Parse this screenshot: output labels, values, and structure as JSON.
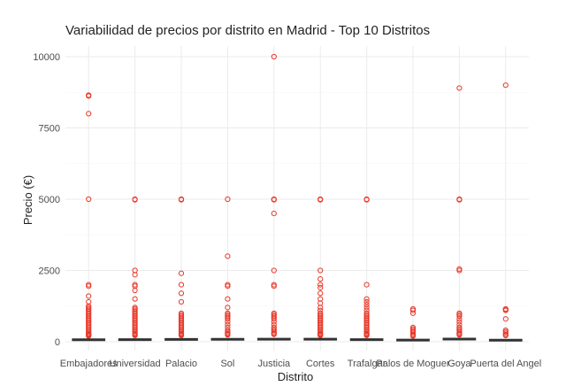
{
  "chart_data": {
    "type": "boxplot",
    "title": "Variabilidad de precios por distrito en Madrid - Top 10 Distritos",
    "xlabel": "Distrito",
    "ylabel": "Precio (€)",
    "ylim": [
      0,
      10300
    ],
    "yticks": [
      0,
      2500,
      5000,
      7500,
      10000
    ],
    "ytick_labels": [
      "0",
      "2500",
      "5000",
      "7500",
      "10000"
    ],
    "grid": true,
    "outlier_color": "#e8392a",
    "box_color": "#333333",
    "categories": [
      "Embajadores",
      "Universidad",
      "Palacio",
      "Sol",
      "Justicia",
      "Cortes",
      "Trafalgar",
      "Palos de Moguer",
      "Goya",
      "Puerta del Angel"
    ],
    "box_medians": [
      70,
      75,
      80,
      85,
      90,
      90,
      75,
      60,
      95,
      55
    ],
    "outliers": [
      [
        8650,
        8620,
        8000,
        5000,
        2000,
        1950,
        1600,
        1400,
        1250,
        1200,
        1150,
        1100,
        1050,
        1000,
        950,
        900,
        850,
        800,
        750,
        700,
        650,
        600,
        550,
        500,
        450,
        400,
        350,
        300,
        280,
        260,
        240,
        220,
        200
      ],
      [
        5000,
        4980,
        2500,
        2350,
        2000,
        1950,
        1800,
        1500,
        1200,
        1150,
        1100,
        1050,
        1000,
        950,
        900,
        850,
        800,
        750,
        700,
        650,
        600,
        550,
        500,
        450,
        400,
        350,
        300,
        280,
        260,
        240,
        220
      ],
      [
        5000,
        4980,
        2400,
        2000,
        1700,
        1400,
        1000,
        950,
        900,
        850,
        800,
        750,
        700,
        650,
        600,
        550,
        500,
        450,
        400,
        350,
        300,
        280,
        260,
        240,
        220
      ],
      [
        5000,
        3000,
        2000,
        1950,
        1500,
        1200,
        1000,
        950,
        900,
        850,
        800,
        700,
        600,
        500,
        400,
        350,
        300,
        280,
        260,
        240
      ],
      [
        10000,
        5000,
        4980,
        4500,
        2500,
        2000,
        1950,
        1000,
        950,
        900,
        850,
        800,
        700,
        600,
        500,
        450,
        400,
        350,
        300,
        280,
        260
      ],
      [
        5000,
        4980,
        2500,
        2200,
        2000,
        1900,
        1700,
        1500,
        1350,
        1200,
        1100,
        1000,
        950,
        900,
        850,
        800,
        750,
        700,
        650,
        600,
        550,
        500,
        450,
        400,
        350,
        300,
        280,
        260,
        240,
        220
      ],
      [
        5000,
        4980,
        2000,
        1500,
        1400,
        1300,
        1200,
        1100,
        1000,
        950,
        900,
        850,
        800,
        750,
        700,
        650,
        600,
        550,
        500,
        450,
        400,
        350,
        300,
        280,
        260,
        240,
        220
      ],
      [
        1150,
        1100,
        1000,
        500,
        450,
        400,
        350,
        300,
        250,
        220,
        200
      ],
      [
        8900,
        5000,
        4980,
        2550,
        2500,
        1000,
        950,
        900,
        800,
        700,
        600,
        500,
        450,
        400,
        350,
        300,
        280,
        260,
        240
      ],
      [
        9000,
        1150,
        1130,
        1100,
        800,
        400,
        350,
        300,
        250,
        220
      ]
    ]
  }
}
